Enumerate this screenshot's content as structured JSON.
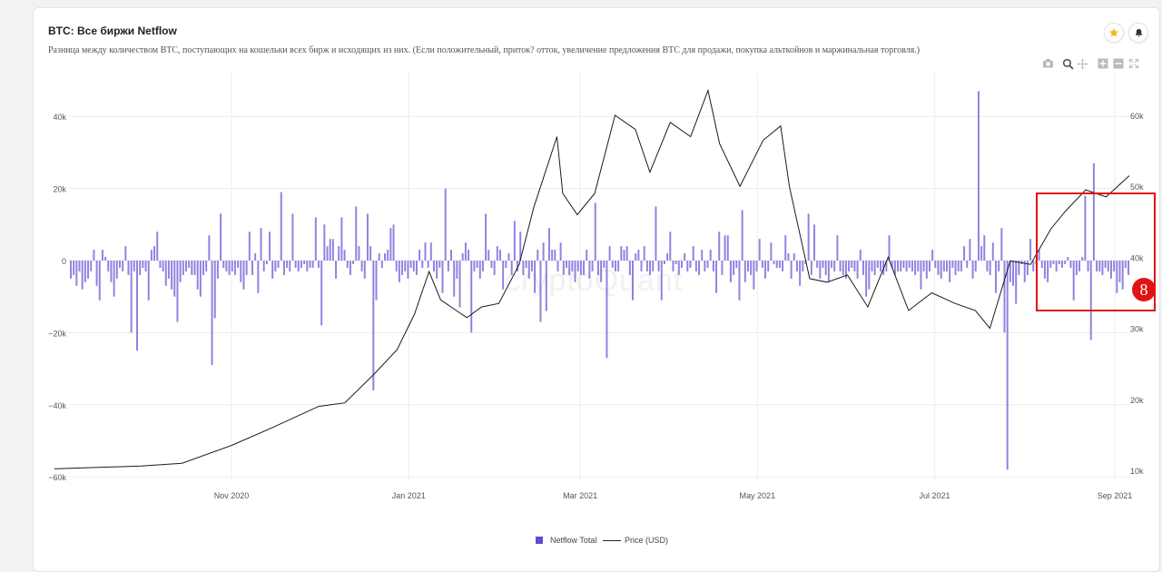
{
  "header": {
    "title": "BTC: Все биржи Netflow",
    "subtitle": "Разница между количеством BTC, поступающих на кошельки всех бирж и исходящих из них. (Если положительный, приток? отток, увеличение предложения BTC для продажи, покупка альткойнов и маржинальная торговля.)"
  },
  "watermark": "cryptoQuant",
  "annotation": {
    "badge_label": "8"
  },
  "icons": {
    "star": "star-icon",
    "bell": "bell-icon",
    "modebar": [
      "camera-icon",
      "zoom-icon",
      "pan-icon",
      "zoom-in-icon",
      "zoom-out-icon",
      "autoscale-icon"
    ]
  },
  "colors": {
    "bars": "#8e82e0",
    "legend_bar": "#5a4fd1",
    "price_line": "#1a1a1a",
    "highlight": "#e01414",
    "star": "#f5b81c"
  },
  "chart_data": {
    "type": "bar",
    "title": "BTC: Все биржи Netflow",
    "x_ticks": [
      "Nov 2020",
      "Jan 2021",
      "Mar 2021",
      "May 2021",
      "Jul 2021",
      "Sep 2021"
    ],
    "y_left_ticks": [
      "40k",
      "20k",
      "0",
      "−20k",
      "−40k",
      "−60k"
    ],
    "y_left_range": [
      -60000,
      45000
    ],
    "y_right_ticks": [
      "60k",
      "50k",
      "40k",
      "30k",
      "20k",
      "10k"
    ],
    "y_right_range": [
      10000,
      63000
    ],
    "legend": [
      "Netflow Total",
      "Price (USD)"
    ],
    "legend_placement": "bottom",
    "grid": true,
    "series": [
      {
        "name": "Netflow Total",
        "axis": "left",
        "values": [
          -5000,
          -4000,
          -7000,
          -3000,
          -8000,
          -6000,
          -5000,
          -3000,
          3000,
          -7000,
          -11000,
          3000,
          1000,
          -3000,
          -6000,
          -10000,
          -5000,
          -2000,
          -3000,
          4000,
          -4000,
          -20000,
          -3000,
          -25000,
          -4000,
          -2000,
          -3000,
          -11000,
          3000,
          4000,
          8000,
          -2000,
          -3000,
          -7000,
          -5000,
          -8000,
          -10000,
          -17000,
          -6000,
          -4000,
          -3000,
          -2000,
          -4000,
          -4000,
          -8000,
          -10000,
          -4000,
          -3000,
          7000,
          -29000,
          -16000,
          -5000,
          13000,
          -2000,
          -3000,
          -4000,
          -3000,
          -4000,
          -2000,
          -6000,
          -8000,
          -4000,
          8000,
          -4000,
          2000,
          -9000,
          9000,
          -3000,
          -1000,
          8000,
          -5000,
          -3000,
          -2000,
          19000,
          -4000,
          -2000,
          -3000,
          13000,
          -2000,
          -3000,
          -2000,
          -1000,
          -3000,
          -2000,
          -2000,
          12000,
          -2000,
          -18000,
          10000,
          4000,
          6000,
          6000,
          -5000,
          4000,
          12000,
          3000,
          -2000,
          -4000,
          -1000,
          15000,
          4000,
          -3000,
          -5000,
          13000,
          4000,
          -36000,
          -11000,
          2000,
          -2000,
          2000,
          3000,
          9000,
          10000,
          -3000,
          -6000,
          -4000,
          -3000,
          -5000,
          -2000,
          -3000,
          -4000,
          3000,
          -2000,
          5000,
          -2000,
          5000,
          -3000,
          -5000,
          -2000,
          -9000,
          20000,
          -3000,
          3000,
          -10000,
          -5000,
          -13000,
          2000,
          5000,
          3000,
          -20000,
          -3000,
          -2000,
          -5000,
          -3000,
          13000,
          3000,
          -2000,
          -4000,
          4000,
          3000,
          -8000,
          -2000,
          2000,
          -4000,
          11000,
          -3000,
          8000,
          -4000,
          -2000,
          -5000,
          -3000,
          -9000,
          3000,
          -17000,
          5000,
          -14000,
          9000,
          3000,
          3000,
          -3000,
          5000,
          -4000,
          -2000,
          -4000,
          -3000,
          -6000,
          -3000,
          -4000,
          -4000,
          3000,
          -5000,
          -3000,
          16000,
          -4000,
          -6000,
          -2000,
          -27000,
          4000,
          -2000,
          -3000,
          -3000,
          4000,
          3000,
          4000,
          -4000,
          -11000,
          2000,
          3000,
          -3000,
          4000,
          -3000,
          -4000,
          -3000,
          15000,
          -3000,
          -11000,
          -1000,
          2000,
          8000,
          -3000,
          -1000,
          -4000,
          -2000,
          2000,
          -3000,
          -2000,
          4000,
          -3000,
          -4000,
          3000,
          -3000,
          -2000,
          3000,
          -3000,
          -9000,
          8000,
          -4000,
          7000,
          7000,
          -6000,
          -4000,
          -2000,
          -11000,
          14000,
          -6000,
          -3000,
          -4000,
          -8000,
          -3000,
          6000,
          -2000,
          -5000,
          -3000,
          5000,
          -1000,
          -2000,
          -2000,
          -3000,
          7000,
          2000,
          -5000,
          2000,
          -3000,
          -7000,
          -3000,
          -1000,
          13000,
          -4000,
          10000,
          -2000,
          -5000,
          -2000,
          -4000,
          -6000,
          -2000,
          -3000,
          7000,
          -3000,
          -4000,
          -5000,
          -3000,
          -2000,
          -3000,
          -5000,
          3000,
          -4000,
          -10000,
          -8000,
          -3000,
          -4000,
          -2000,
          -3000,
          -4000,
          -3000,
          7000,
          -2000,
          -4000,
          -3000,
          -3000,
          -2000,
          -3000,
          -2000,
          -3000,
          -4000,
          -3000,
          -8000,
          -3000,
          -5000,
          -3000,
          3000,
          -2000,
          -4000,
          -5000,
          -3000,
          -3000,
          -6000,
          -2000,
          -4000,
          -3000,
          -3000,
          4000,
          -2000,
          6000,
          -5000,
          -3000,
          47000,
          4000,
          7000,
          -3000,
          -4000,
          5000,
          -9000,
          -3000,
          9000,
          -20000,
          -58000,
          -6000,
          -7000,
          -12000,
          -4000,
          -1000,
          -6000,
          -4000,
          6000,
          -3000,
          -1000,
          3000,
          -2000,
          -5000,
          -6000,
          -2000,
          -1000,
          -3000,
          -1000,
          -2000,
          -1000,
          1000,
          -2000,
          -11000,
          -4000,
          -3000,
          1000,
          18000,
          -3000,
          -22000,
          27000,
          -3000,
          -3000,
          -4000,
          -2000,
          -3000,
          -5000,
          -3000,
          -9000,
          -6000,
          -8000,
          -2000,
          -4000
        ]
      },
      {
        "name": "Price (USD)",
        "axis": "right",
        "x_dates": [
          "2020-09-01",
          "2020-09-15",
          "2020-10-01",
          "2020-10-15",
          "2020-11-01",
          "2020-11-15",
          "2020-12-01",
          "2020-12-10",
          "2020-12-20",
          "2020-12-28",
          "2021-01-03",
          "2021-01-08",
          "2021-01-12",
          "2021-01-21",
          "2021-01-26",
          "2021-02-01",
          "2021-02-08",
          "2021-02-13",
          "2021-02-21",
          "2021-02-23",
          "2021-02-28",
          "2021-03-06",
          "2021-03-13",
          "2021-03-20",
          "2021-03-25",
          "2021-04-01",
          "2021-04-08",
          "2021-04-14",
          "2021-04-18",
          "2021-04-25",
          "2021-05-03",
          "2021-05-09",
          "2021-05-12",
          "2021-05-19",
          "2021-05-25",
          "2021-06-01",
          "2021-06-08",
          "2021-06-15",
          "2021-06-22",
          "2021-06-30",
          "2021-07-08",
          "2021-07-15",
          "2021-07-20",
          "2021-07-27",
          "2021-08-03",
          "2021-08-10",
          "2021-08-15",
          "2021-08-22",
          "2021-08-29",
          "2021-09-06"
        ],
        "values": [
          10200,
          10400,
          10600,
          11000,
          13500,
          16000,
          19000,
          19500,
          23500,
          27000,
          32000,
          38000,
          34000,
          31500,
          33000,
          33500,
          39000,
          47000,
          57000,
          49000,
          46000,
          49000,
          60000,
          58000,
          52000,
          59000,
          57000,
          63500,
          56000,
          50000,
          56500,
          58500,
          50000,
          37000,
          36500,
          37500,
          33000,
          40000,
          32500,
          35000,
          33500,
          32500,
          30000,
          39500,
          39000,
          44000,
          46500,
          49500,
          48500,
          51500
        ]
      }
    ]
  }
}
